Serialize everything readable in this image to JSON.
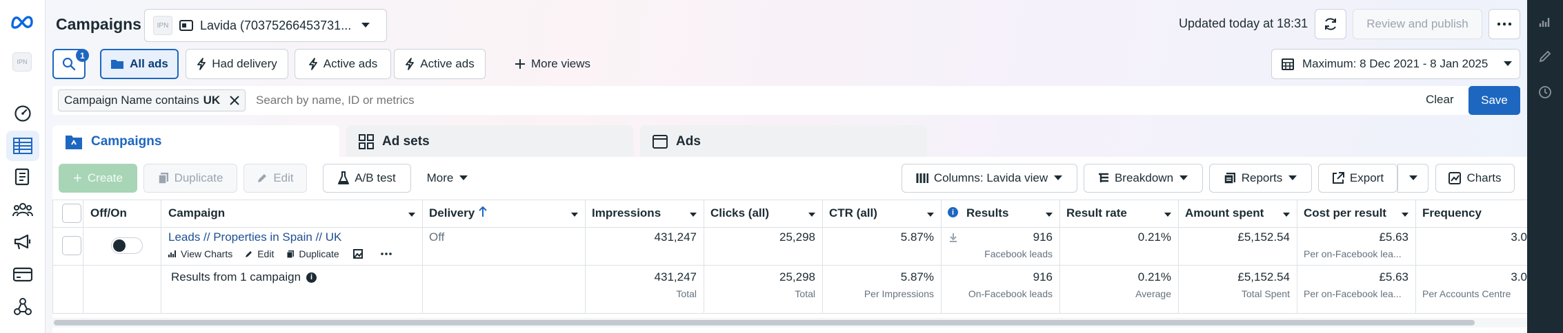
{
  "header": {
    "title": "Campaigns",
    "account_badge": "IPN",
    "account_name": "Lavida (70375266453731...",
    "updated_text": "Updated today at 18:31",
    "review_publish_label": "Review and publish"
  },
  "views": {
    "search_badge_count": "1",
    "all_ads": "All ads",
    "had_delivery": "Had delivery",
    "active_ads_1": "Active ads",
    "active_ads_2": "Active ads",
    "more_views": "More views",
    "date_range": "Maximum: 8 Dec 2021 - 8 Jan 2025"
  },
  "filter": {
    "chip_prefix": "Campaign Name contains",
    "chip_value": "UK",
    "search_placeholder": "Search by name, ID or metrics",
    "clear_label": "Clear",
    "save_label": "Save"
  },
  "tabs": {
    "campaigns": "Campaigns",
    "ad_sets": "Ad sets",
    "ads": "Ads"
  },
  "toolbar": {
    "create": "Create",
    "duplicate": "Duplicate",
    "edit": "Edit",
    "ab_test": "A/B test",
    "more": "More",
    "columns": "Columns: Lavida view",
    "breakdown": "Breakdown",
    "reports": "Reports",
    "export": "Export",
    "charts": "Charts"
  },
  "table": {
    "headers": {
      "offon": "Off/On",
      "campaign": "Campaign",
      "delivery": "Delivery",
      "impressions": "Impressions",
      "clicks": "Clicks (all)",
      "ctr": "CTR (all)",
      "results": "Results",
      "result_rate": "Result rate",
      "amount_spent": "Amount spent",
      "cost_per_result": "Cost per result",
      "frequency": "Frequency"
    },
    "row": {
      "campaign_name": "Leads // Properties in Spain // UK",
      "view_charts": "View Charts",
      "edit": "Edit",
      "duplicate": "Duplicate",
      "delivery": "Off",
      "impressions": "431,247",
      "clicks": "25,298",
      "ctr": "5.87%",
      "results": "916",
      "results_sub": "Facebook leads",
      "result_rate": "0.21%",
      "amount_spent": "£5,152.54",
      "cost_per_result": "£5.63",
      "cost_per_result_sub": "Per on-Facebook lea...",
      "frequency": "3.0"
    },
    "summary": {
      "label": "Results from 1 campaign",
      "impressions": "431,247",
      "impressions_sub": "Total",
      "clicks": "25,298",
      "clicks_sub": "Total",
      "ctr": "5.87%",
      "ctr_sub": "Per Impressions",
      "results": "916",
      "results_sub": "On-Facebook leads",
      "result_rate": "0.21%",
      "result_rate_sub": "Average",
      "amount_spent": "£5,152.54",
      "amount_spent_sub": "Total Spent",
      "cost_per_result": "£5.63",
      "cost_per_result_sub": "Per on-Facebook lea...",
      "frequency": "3.0",
      "frequency_sub": "Per Accounts Centre"
    }
  },
  "colors": {
    "accent": "#1d67c0",
    "save_button": "#1d67c0",
    "dark_sidebar": "#1c2b33"
  }
}
